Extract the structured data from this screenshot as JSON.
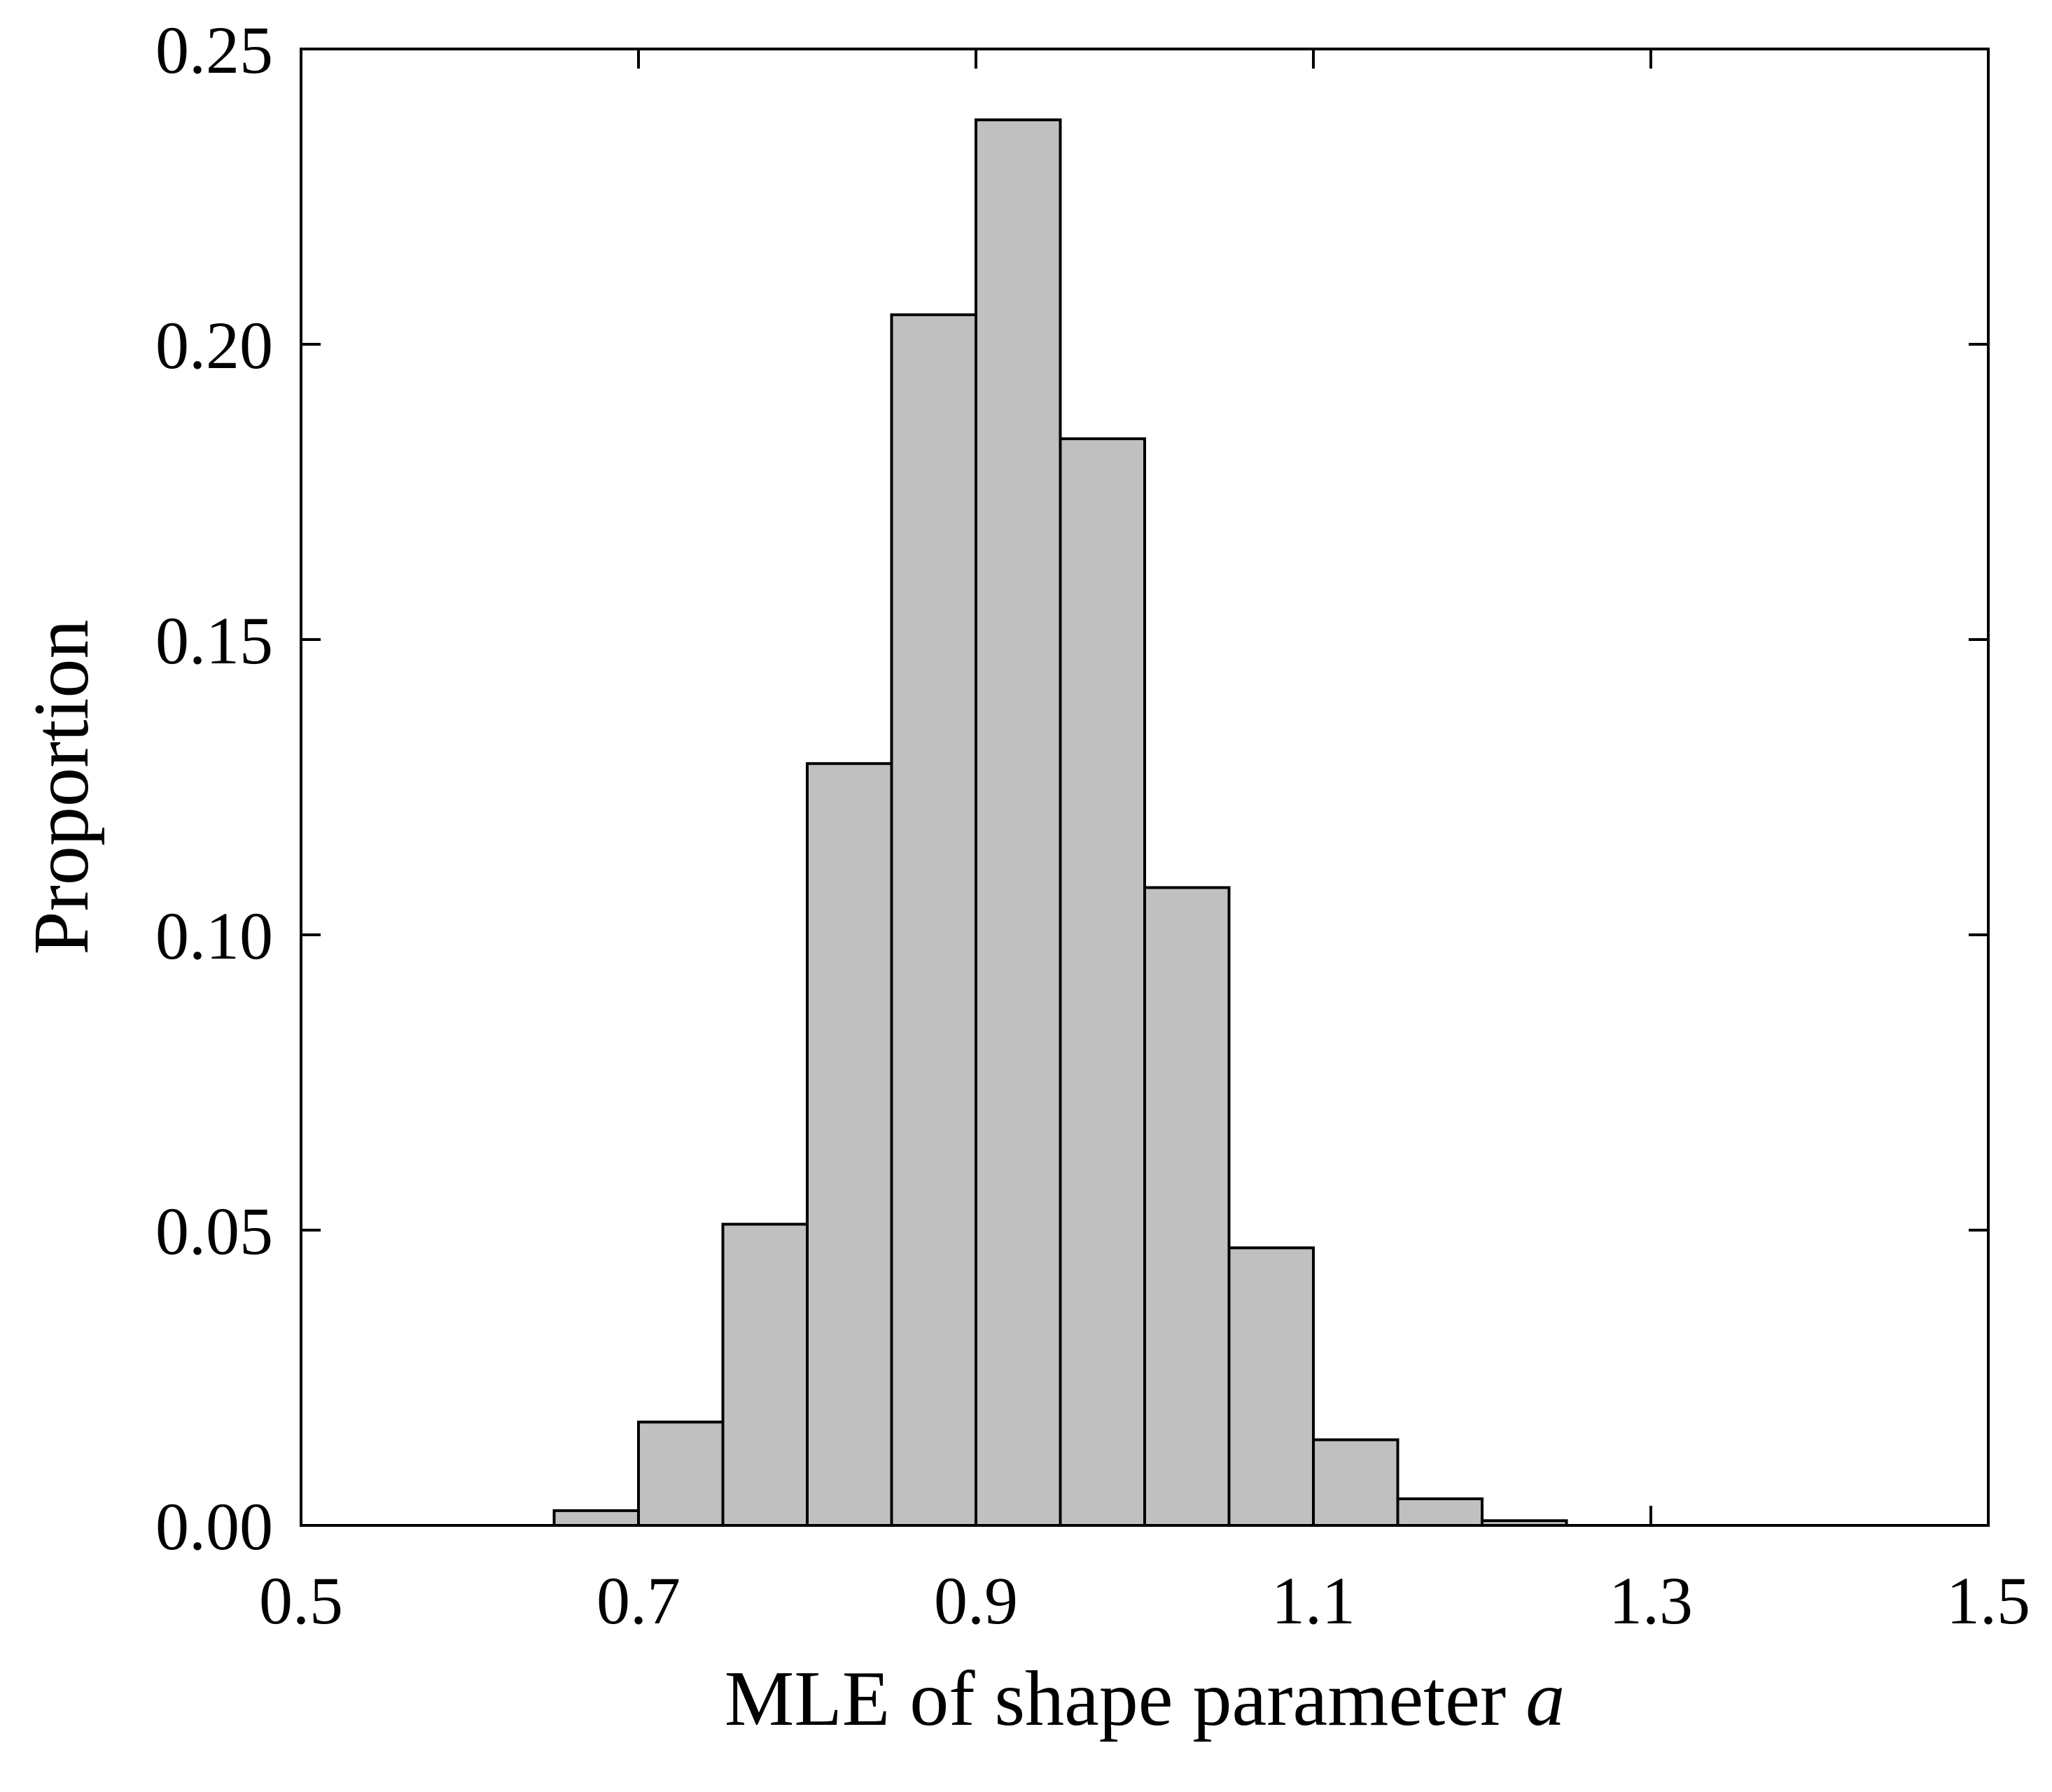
{
  "chart_data": {
    "type": "bar",
    "title": "",
    "xlabel": "MLE of shape parameter ",
    "xlabel_var": "a",
    "ylabel": "Proportion",
    "xlim": [
      0.5,
      1.5
    ],
    "ylim": [
      0,
      0.25
    ],
    "xticks": [
      "0.5",
      "0.7",
      "0.9",
      "1.1",
      "1.3",
      "1.5"
    ],
    "yticks": [
      "0.00",
      "0.05",
      "0.10",
      "0.15",
      "0.20",
      "0.25"
    ],
    "bin_width": 0.05,
    "bins": [
      {
        "x0": 0.65,
        "x1": 0.7,
        "value": 0.0025
      },
      {
        "x0": 0.7,
        "x1": 0.75,
        "value": 0.0175
      },
      {
        "x0": 0.75,
        "x1": 0.8,
        "value": 0.051
      },
      {
        "x0": 0.8,
        "x1": 0.85,
        "value": 0.129
      },
      {
        "x0": 0.85,
        "x1": 0.9,
        "value": 0.205
      },
      {
        "x0": 0.9,
        "x1": 0.95,
        "value": 0.238
      },
      {
        "x0": 0.95,
        "x1": 1.0,
        "value": 0.184
      },
      {
        "x0": 1.0,
        "x1": 1.05,
        "value": 0.108
      },
      {
        "x0": 1.05,
        "x1": 1.1,
        "value": 0.047
      },
      {
        "x0": 1.1,
        "x1": 1.15,
        "value": 0.0145
      },
      {
        "x0": 1.15,
        "x1": 1.2,
        "value": 0.0045
      },
      {
        "x0": 1.2,
        "x1": 1.25,
        "value": 0.0008
      }
    ],
    "bar_color": "#c0c0c0",
    "edge_color": "#000000",
    "grid": false,
    "legend": "none"
  }
}
